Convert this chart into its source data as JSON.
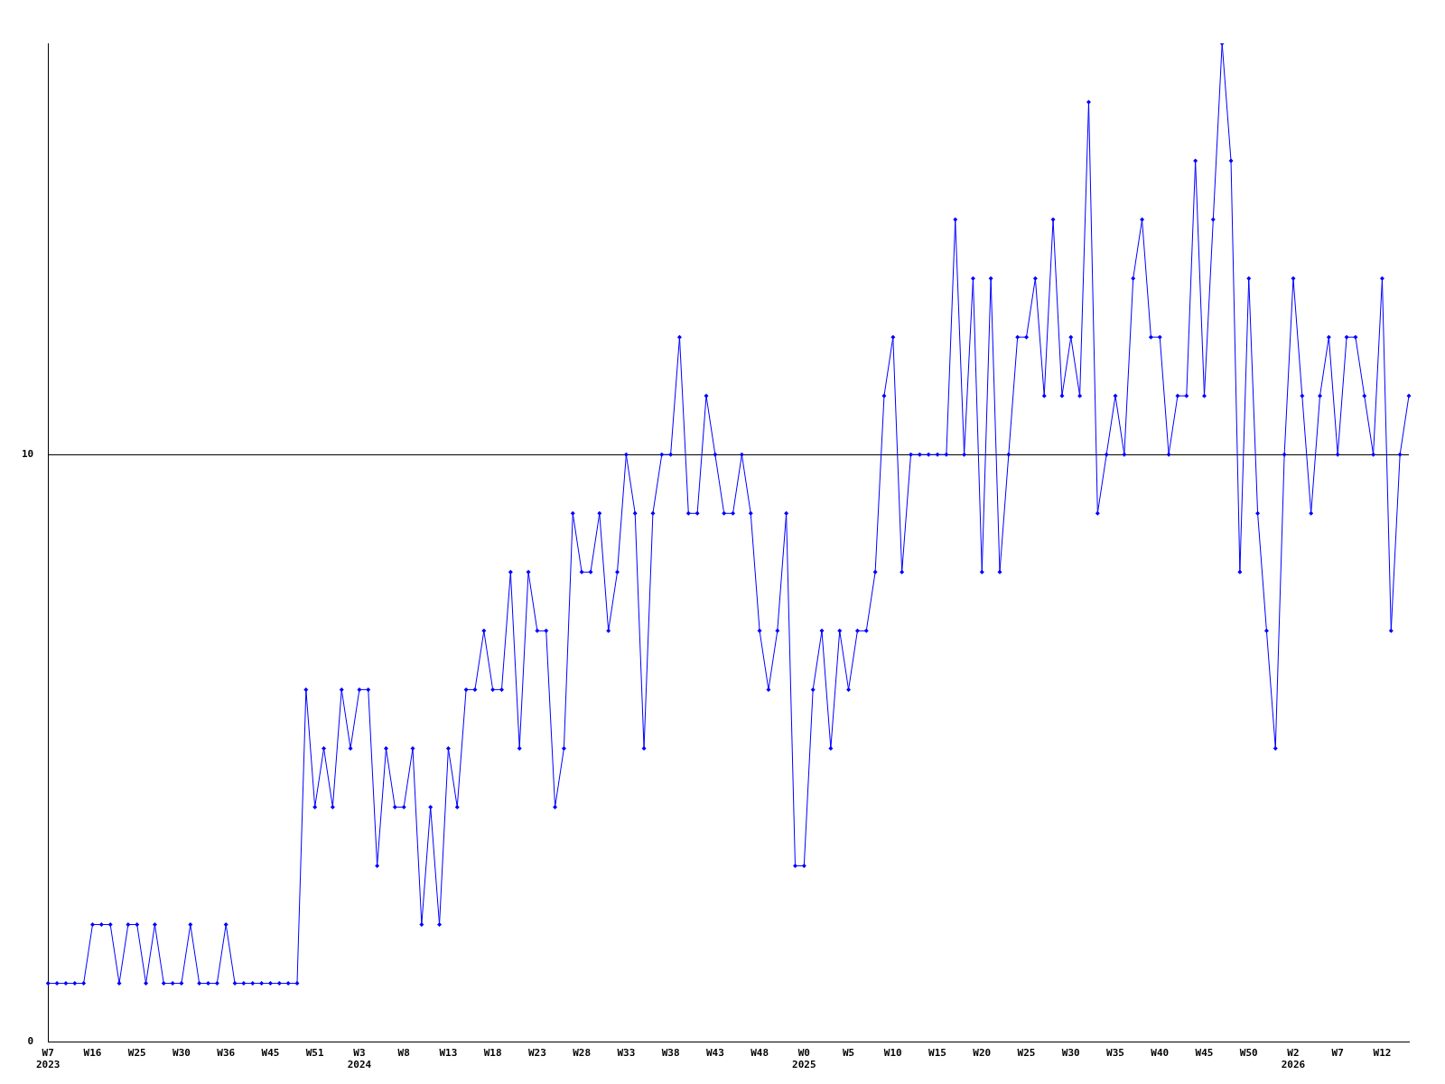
{
  "chart_data": {
    "type": "line",
    "categories": [
      "W7\n2023",
      null,
      null,
      null,
      null,
      "W16",
      null,
      null,
      null,
      null,
      "W25",
      null,
      null,
      null,
      null,
      "W30",
      null,
      null,
      null,
      null,
      "W36",
      null,
      null,
      null,
      null,
      "W45",
      null,
      null,
      null,
      null,
      "W51",
      null,
      null,
      null,
      null,
      "W3\n2024",
      null,
      null,
      null,
      null,
      "W8",
      null,
      null,
      null,
      null,
      "W13",
      null,
      null,
      null,
      null,
      "W18",
      null,
      null,
      null,
      null,
      "W23",
      null,
      null,
      null,
      null,
      "W28",
      null,
      null,
      null,
      null,
      "W33",
      null,
      null,
      null,
      null,
      "W38",
      null,
      null,
      null,
      null,
      "W43",
      null,
      null,
      null,
      null,
      "W48",
      null,
      null,
      null,
      null,
      "W0\n2025",
      null,
      null,
      null,
      null,
      "W5",
      null,
      null,
      null,
      null,
      "W10",
      null,
      null,
      null,
      null,
      "W15",
      null,
      null,
      null,
      null,
      "W20",
      null,
      null,
      null,
      null,
      "W25",
      null,
      null,
      null,
      null,
      "W30",
      null,
      null,
      null,
      null,
      "W35",
      null,
      null,
      null,
      null,
      "W40",
      null,
      null,
      null,
      null,
      "W45",
      null,
      null,
      null,
      null,
      "W50",
      null,
      null,
      null,
      null,
      "W2\n2026",
      null,
      null,
      null,
      null,
      "W7",
      null,
      null,
      null,
      null,
      "W12",
      null,
      null,
      null
    ],
    "series": [
      {
        "color": "#0000ff",
        "values": [
          1,
          1,
          1,
          1,
          1,
          2,
          2,
          2,
          1,
          2,
          2,
          1,
          2,
          1,
          1,
          1,
          2,
          1,
          1,
          1,
          2,
          1,
          1,
          1,
          1,
          1,
          1,
          1,
          1,
          6,
          4,
          5,
          4,
          6,
          5,
          6,
          6,
          3,
          5,
          4,
          4,
          5,
          2,
          4,
          2,
          5,
          4,
          6,
          6,
          7,
          6,
          6,
          8,
          5,
          8,
          7,
          7,
          4,
          5,
          9,
          8,
          8,
          9,
          7,
          8,
          10,
          9,
          5,
          9,
          10,
          10,
          12,
          9,
          9,
          11,
          10,
          9,
          9,
          10,
          9,
          7,
          6,
          7,
          9,
          3,
          3,
          6,
          7,
          5,
          7,
          6,
          7,
          7,
          8,
          11,
          12,
          8,
          10,
          10,
          10,
          10,
          10,
          14,
          10,
          13,
          8,
          13,
          8,
          10,
          12,
          12,
          13,
          11,
          14,
          11,
          12,
          11,
          16,
          9,
          10,
          11,
          10,
          13,
          14,
          12,
          12,
          10,
          11,
          11,
          15,
          11,
          14,
          17,
          15,
          8,
          13,
          9,
          7,
          5,
          10,
          13,
          11,
          9,
          11,
          12,
          10,
          12,
          12,
          11,
          10,
          13,
          7,
          10,
          11
        ]
      }
    ],
    "ylim": [
      0,
      17
    ],
    "yticks": [
      0,
      10
    ],
    "grid": "y",
    "legend": false,
    "marker": "diamond",
    "line_style": "solid"
  }
}
